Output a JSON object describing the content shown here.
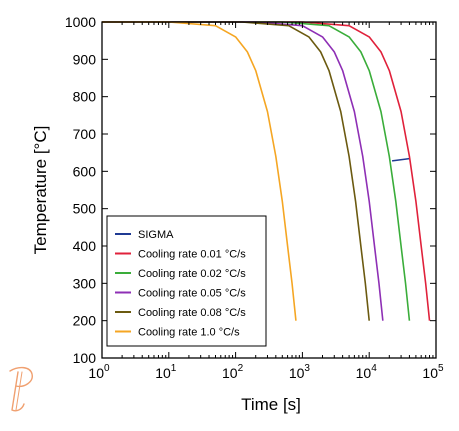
{
  "chart_data": {
    "type": "line",
    "xlabel": "Time [s]",
    "ylabel": "Temperature [°C]",
    "x_scale": "log",
    "xlim": [
      1,
      100000
    ],
    "ylim": [
      100,
      1000
    ],
    "grid": false,
    "legend_position": "bottom-left",
    "x_ticks": [
      {
        "value": 1,
        "base": "10",
        "exp": "0"
      },
      {
        "value": 10,
        "base": "10",
        "exp": "1"
      },
      {
        "value": 100,
        "base": "10",
        "exp": "2"
      },
      {
        "value": 1000,
        "base": "10",
        "exp": "3"
      },
      {
        "value": 10000,
        "base": "10",
        "exp": "4"
      },
      {
        "value": 100000,
        "base": "10",
        "exp": "5"
      }
    ],
    "y_ticks": [
      "100",
      "200",
      "300",
      "400",
      "500",
      "600",
      "700",
      "800",
      "900",
      "1000"
    ],
    "series": [
      {
        "name": "SIGMA",
        "color": "#1f3a93",
        "points": [
          [
            22000,
            628
          ],
          [
            40000,
            634
          ]
        ]
      },
      {
        "name": "Cooling rate 0.01 °C/s",
        "color": "#e0213b",
        "points": [
          [
            1,
            1000
          ],
          [
            1000,
            1000
          ],
          [
            5000,
            990
          ],
          [
            10000,
            960
          ],
          [
            15000,
            920
          ],
          [
            20000,
            870
          ],
          [
            30000,
            760
          ],
          [
            40000,
            640
          ],
          [
            50000,
            520
          ],
          [
            60000,
            400
          ],
          [
            70000,
            300
          ],
          [
            80000,
            200
          ]
        ]
      },
      {
        "name": "Cooling rate 0.02 °C/s",
        "color": "#3aad3a",
        "points": [
          [
            1,
            1000
          ],
          [
            500,
            1000
          ],
          [
            2500,
            990
          ],
          [
            5000,
            960
          ],
          [
            7500,
            920
          ],
          [
            10000,
            870
          ],
          [
            15000,
            760
          ],
          [
            20000,
            640
          ],
          [
            25000,
            520
          ],
          [
            30000,
            400
          ],
          [
            35000,
            300
          ],
          [
            40000,
            200
          ]
        ]
      },
      {
        "name": "Cooling rate 0.05 °C/s",
        "color": "#8e2fb5",
        "points": [
          [
            1,
            1000
          ],
          [
            200,
            1000
          ],
          [
            1000,
            990
          ],
          [
            2000,
            960
          ],
          [
            3000,
            920
          ],
          [
            4000,
            870
          ],
          [
            6000,
            760
          ],
          [
            8000,
            640
          ],
          [
            10000,
            520
          ],
          [
            12000,
            400
          ],
          [
            14000,
            300
          ],
          [
            16000,
            200
          ]
        ]
      },
      {
        "name": "Cooling rate 0.08 °C/s",
        "color": "#6b5a10",
        "points": [
          [
            1,
            1000
          ],
          [
            125,
            1000
          ],
          [
            625,
            990
          ],
          [
            1250,
            960
          ],
          [
            1875,
            920
          ],
          [
            2500,
            870
          ],
          [
            3750,
            760
          ],
          [
            5000,
            640
          ],
          [
            6250,
            520
          ],
          [
            7500,
            400
          ],
          [
            8750,
            300
          ],
          [
            10000,
            200
          ]
        ]
      },
      {
        "name": "Cooling rate 1.0 °C/s",
        "color": "#f5a623",
        "points": [
          [
            1,
            1000
          ],
          [
            10,
            1000
          ],
          [
            50,
            990
          ],
          [
            100,
            960
          ],
          [
            150,
            920
          ],
          [
            200,
            870
          ],
          [
            300,
            760
          ],
          [
            400,
            640
          ],
          [
            500,
            520
          ],
          [
            600,
            400
          ],
          [
            700,
            300
          ],
          [
            800,
            200
          ]
        ]
      }
    ]
  },
  "logo": {
    "name": "thermo-calc-logo",
    "color": "#f0a070"
  }
}
